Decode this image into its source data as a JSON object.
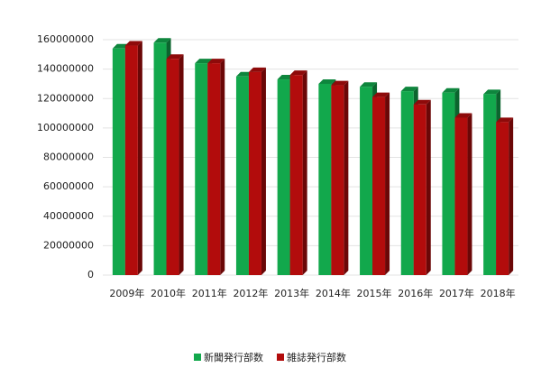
{
  "chart_data": {
    "type": "bar",
    "categories": [
      "2009年",
      "2010年",
      "2011年",
      "2012年",
      "2013年",
      "2014年",
      "2015年",
      "2016年",
      "2017年",
      "2018年"
    ],
    "series": [
      {
        "name": "新聞発行部数",
        "color": "#12a84c",
        "values": [
          154000000,
          158000000,
          144000000,
          135000000,
          133000000,
          130000000,
          128000000,
          125000000,
          124000000,
          123000000
        ]
      },
      {
        "name": "雑誌発行部数",
        "color": "#b20c0c",
        "values": [
          156000000,
          147000000,
          144000000,
          138000000,
          136000000,
          129000000,
          121000000,
          116000000,
          107000000,
          104000000
        ]
      }
    ],
    "ylim": [
      0,
      160000000
    ],
    "yticks": [
      0,
      20000000,
      40000000,
      60000000,
      80000000,
      100000000,
      120000000,
      140000000,
      160000000
    ],
    "grid": true
  }
}
